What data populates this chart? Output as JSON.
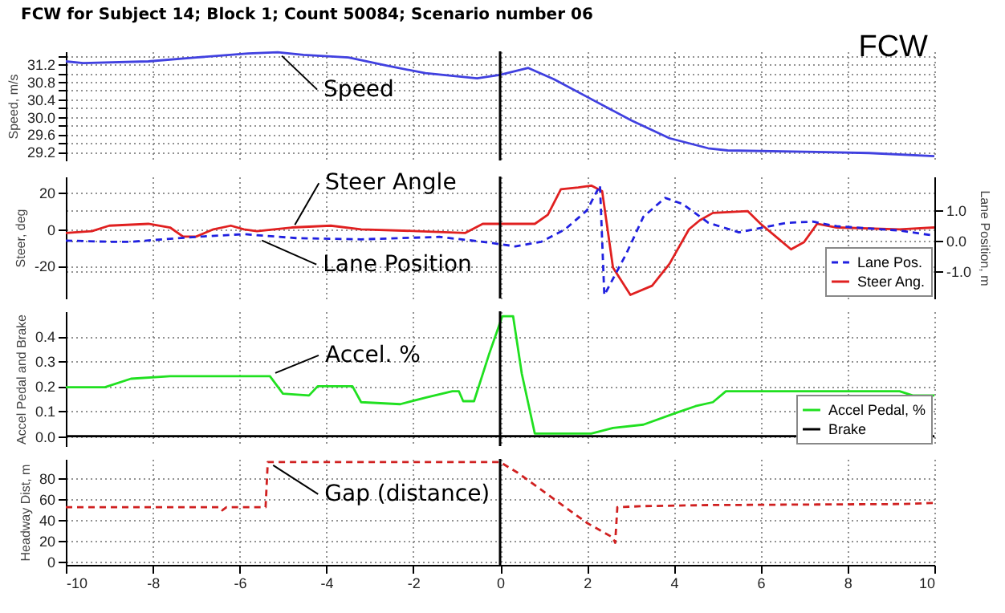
{
  "chart_data": [
    {
      "type": "line",
      "title": "FCW for Subject 14; Block 1; Count 50084; Scenario number 06",
      "ylabel": "Speed, m/s",
      "annotations": [
        "FCW",
        {
          "text": "Speed",
          "x": -5.1,
          "y": 31.47
        }
      ],
      "xlim": [
        -10,
        10
      ],
      "xticks": [
        -10,
        -8,
        -6,
        -4,
        -2,
        0,
        2,
        4,
        6,
        8,
        10
      ],
      "ylim": [
        29.0,
        31.5
      ],
      "yticks": [
        29.2,
        {
          "value": 29.4,
          "label": null
        },
        29.6,
        {
          "value": 29.8,
          "label": null
        },
        {
          "value": 30,
          "label": "30.0"
        },
        {
          "value": 30.2,
          "label": null
        },
        30.4,
        {
          "value": 30.6,
          "label": null
        },
        30.8,
        {
          "value": 31.0,
          "label": null
        },
        31.2,
        {
          "value": 31.4,
          "label": null
        }
      ],
      "grid": true,
      "tick_labels": "y",
      "ref_lines": [
        {
          "axis": "x",
          "value": 0,
          "color": "#000000"
        }
      ],
      "series": [
        {
          "color": "#4040e0",
          "x": [
            -10,
            -9.6,
            -8.1,
            -7.0,
            -5.8,
            -5.12,
            -4.53,
            -3.49,
            -2.6,
            -1.72,
            -0.53,
            -0.01,
            0.65,
            1.24,
            2.13,
            3.02,
            3.9,
            4.79,
            5.24,
            7.0,
            8.5,
            10
          ],
          "values": [
            31.27,
            31.23,
            31.27,
            31.36,
            31.45,
            31.48,
            31.42,
            31.36,
            31.17,
            31.0,
            30.88,
            30.96,
            31.12,
            30.86,
            30.39,
            29.92,
            29.51,
            29.28,
            29.23,
            29.2,
            29.17,
            29.1
          ]
        }
      ]
    },
    {
      "type": "line",
      "ylabel": "Steer, deg",
      "y2label": "Lane Position, m",
      "annotations": [
        {
          "text": "Steer Angle",
          "x": -4.8,
          "y": 0.7
        },
        {
          "text": "Lane Position",
          "x": -5.56,
          "y": -4.3
        }
      ],
      "xlim": [
        -10,
        10
      ],
      "xticks": [
        -10,
        -8,
        -6,
        -4,
        -2,
        0,
        2,
        4,
        6,
        8,
        10
      ],
      "ylim": [
        -38,
        29
      ],
      "yticks": [
        -20,
        0,
        20
      ],
      "y2lim": [
        -1.9,
        2.1
      ],
      "y2ticks": [
        {
          "value": -1,
          "label": "-1.0"
        },
        {
          "value": 0,
          "label": "0.0"
        },
        {
          "value": 1,
          "label": "1.0"
        }
      ],
      "grid": true,
      "tick_labels": "y",
      "legend": "bottom right",
      "ref_lines": [
        {
          "axis": "x",
          "value": 0,
          "color": "#000000"
        }
      ],
      "series": [
        {
          "name": "Lane Pos.",
          "color": "#2020e0",
          "axis": "y2",
          "line_style": "dashed",
          "x": [
            -10,
            -9,
            -8.5,
            -7.0,
            -5.9,
            -4.7,
            -3.2,
            -1.4,
            -0.4,
            0.35,
            0.95,
            1.5,
            2.0,
            2.3,
            2.4,
            2.9,
            3.3,
            3.8,
            4.2,
            4.8,
            5.5,
            6.6,
            7.2,
            7.75,
            9.2,
            10
          ],
          "values": [
            0,
            -0.04,
            -0.04,
            0.12,
            0.21,
            0.08,
            0.04,
            0.12,
            -0.04,
            -0.19,
            -0.04,
            0.37,
            0.99,
            1.81,
            -1.79,
            -0.45,
            0.78,
            1.4,
            1.2,
            0.58,
            0.27,
            0.58,
            0.62,
            0.47,
            0.33,
            0.16
          ]
        },
        {
          "name": "Steer Ang.",
          "color": "#e02020",
          "x": [
            -10,
            -9.4,
            -9,
            -8.1,
            -7.6,
            -7.3,
            -7.0,
            -6.6,
            -6.2,
            -5.9,
            -5.6,
            -4.8,
            -3.9,
            -3.2,
            -1.9,
            -0.8,
            -0.4,
            0.2,
            0.8,
            1.1,
            1.4,
            1.8,
            2.1,
            2.35,
            2.6,
            3.0,
            3.5,
            3.9,
            4.35,
            4.6,
            4.9,
            5.7,
            6.0,
            6.4,
            6.7,
            7.0,
            7.3,
            7.75,
            9.2,
            10
          ],
          "values": [
            -2,
            -1,
            2,
            3,
            1,
            -4,
            -4,
            0,
            2,
            0,
            -1,
            1,
            2,
            0,
            -1,
            -2,
            3,
            3,
            3,
            8,
            22,
            23,
            24,
            21,
            -21,
            -36,
            -31,
            -19,
            0,
            5,
            9,
            10,
            3,
            -5,
            -11,
            -7,
            3,
            1,
            0,
            1
          ]
        }
      ]
    },
    {
      "type": "line",
      "ylabel": "Accel Pedal and Brake",
      "annotations": [
        {
          "text": "Accel. %",
          "x": -5.25,
          "y": 0.24
        }
      ],
      "xlim": [
        -10,
        10
      ],
      "xticks": [
        -10,
        -8,
        -6,
        -4,
        -2,
        0,
        2,
        4,
        6,
        8,
        10
      ],
      "ylim": [
        -0.04,
        0.5
      ],
      "yticks": [
        {
          "value": 0,
          "label": "0.0"
        },
        0.1,
        0.2,
        0.3,
        0.4
      ],
      "grid": true,
      "tick_labels": "y",
      "legend": "bottom right",
      "ref_lines": [
        {
          "axis": "x",
          "value": 0,
          "color": "#000000"
        }
      ],
      "series": [
        {
          "name": "Accel Pedal, %",
          "color": "#20e020",
          "x": [
            -10,
            -9.1,
            -8.5,
            -7.6,
            -5.3,
            -5.0,
            -4.4,
            -4.2,
            -3.4,
            -3.2,
            -2.3,
            -1.7,
            -1.1,
            -0.95,
            -0.85,
            -0.6,
            -0.25,
            0.05,
            0.3,
            0.5,
            0.8,
            2.1,
            2.6,
            3.3,
            4.05,
            4.5,
            4.9,
            5.2,
            9.2,
            9.5,
            10
          ],
          "values": [
            0.196,
            0.196,
            0.23,
            0.24,
            0.24,
            0.17,
            0.163,
            0.2,
            0.2,
            0.136,
            0.128,
            0.155,
            0.18,
            0.18,
            0.14,
            0.14,
            0.33,
            0.48,
            0.48,
            0.25,
            0.01,
            0.01,
            0.033,
            0.046,
            0.093,
            0.12,
            0.136,
            0.18,
            0.18,
            0.163,
            0.163
          ]
        },
        {
          "name": "Brake",
          "color": "#000000",
          "x": [
            -10,
            10
          ],
          "values": [
            0,
            0
          ]
        }
      ]
    },
    {
      "type": "line",
      "ylabel": "Headway Dist, m",
      "annotations": [
        {
          "text": "Gap (distance)",
          "x": -5.3,
          "y": 95
        }
      ],
      "xlim": [
        -10,
        10
      ],
      "xticks": [
        -10,
        -8,
        -6,
        -4,
        -2,
        0,
        2,
        4,
        6,
        8,
        10
      ],
      "ylim": [
        -3,
        98
      ],
      "yticks": [
        0,
        20,
        40,
        60,
        80
      ],
      "grid": true,
      "ref_lines": [
        {
          "axis": "x",
          "value": 0,
          "color": "#000000"
        }
      ],
      "series": [
        {
          "color": "#d02020",
          "line_style": "dashed",
          "x": [
            -10,
            -6.45,
            -6.4,
            -6.3,
            -5.4,
            -5.35,
            0,
            0.4,
            1.1,
            2.0,
            2.6,
            2.65,
            2.7,
            3.3,
            4.8,
            9.2,
            10
          ],
          "values": [
            52,
            52,
            49,
            52,
            52,
            95,
            95,
            85,
            64,
            37,
            23,
            18,
            52,
            53,
            54,
            55,
            56
          ]
        }
      ]
    }
  ]
}
